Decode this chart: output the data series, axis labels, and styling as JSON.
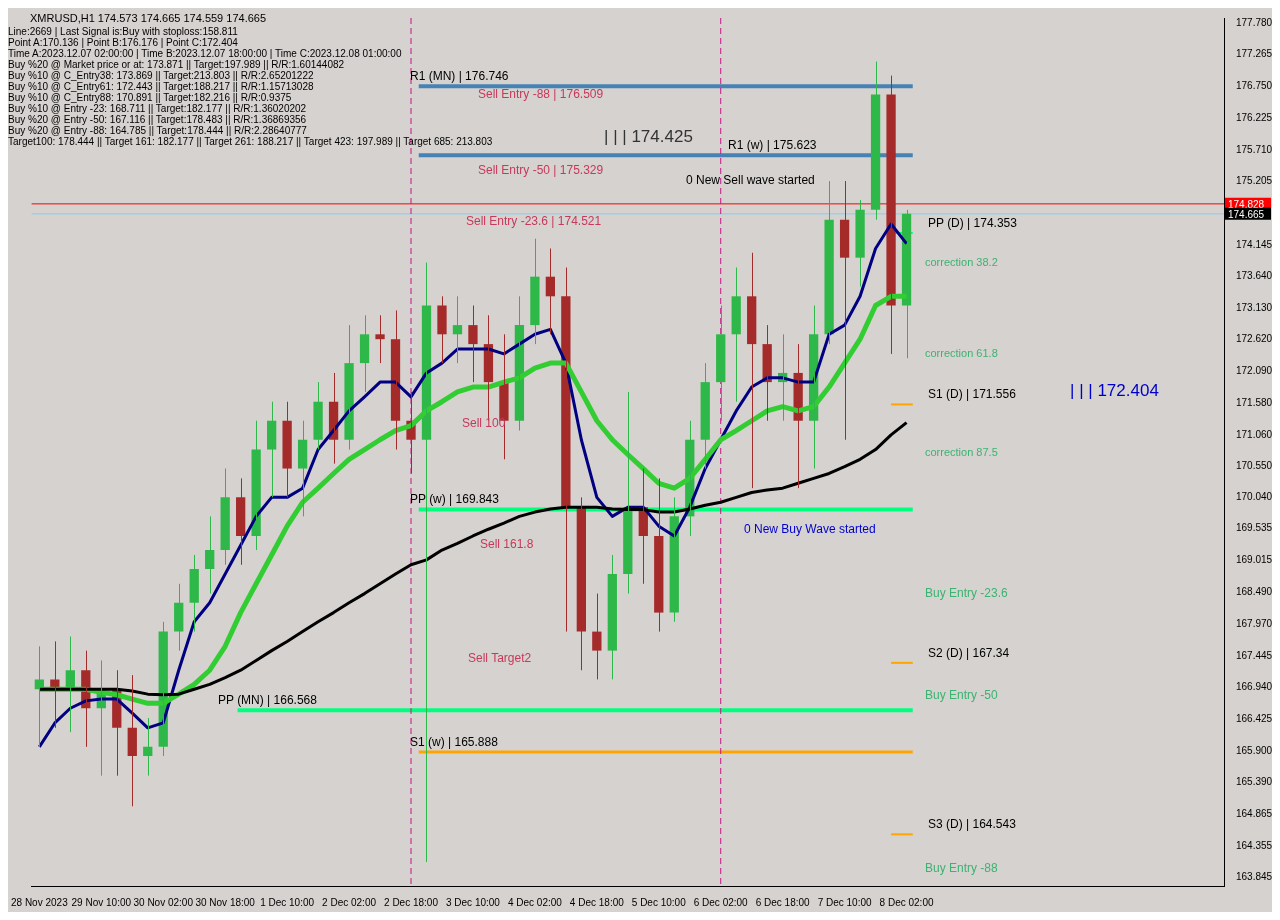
{
  "chart_data": {
    "type": "candlestick",
    "title": "XMRUSD,H1 174.573 174.665 174.559 174.665",
    "categories": [
      "28 Nov 2023",
      null,
      null,
      null,
      "29 Nov 10:00",
      null,
      null,
      null,
      "30 Nov 02:00",
      null,
      null,
      null,
      "30 Nov 18:00",
      null,
      null,
      null,
      "1 Dec 10:00",
      null,
      null,
      null,
      "2 Dec 02:00",
      null,
      null,
      null,
      "2 Dec 18:00",
      null,
      null,
      null,
      "3 Dec 10:00",
      null,
      null,
      null,
      "4 Dec 02:00",
      null,
      null,
      null,
      "4 Dec 18:00",
      null,
      null,
      null,
      "5 Dec 10:00",
      null,
      null,
      null,
      "6 Dec 02:00",
      null,
      null,
      null,
      "6 Dec 18:00",
      null,
      null,
      null,
      "7 Dec 10:00",
      null,
      null,
      null,
      "8 Dec 02:00"
    ],
    "ohlc": [
      [
        166.91,
        167.61,
        165.97,
        167.07
      ],
      [
        167.07,
        167.69,
        166.28,
        166.91
      ],
      [
        166.91,
        167.77,
        166.21,
        167.22
      ],
      [
        167.22,
        167.54,
        165.97,
        166.6
      ],
      [
        166.6,
        167.38,
        165.5,
        166.91
      ],
      [
        166.91,
        167.22,
        165.5,
        166.28
      ],
      [
        166.28,
        167.14,
        165.0,
        165.82
      ],
      [
        165.82,
        166.44,
        165.5,
        165.97
      ],
      [
        165.97,
        168.01,
        165.82,
        167.85
      ],
      [
        167.85,
        168.63,
        167.54,
        168.32
      ],
      [
        168.32,
        169.1,
        167.85,
        168.87
      ],
      [
        168.87,
        169.73,
        168.47,
        169.18
      ],
      [
        169.18,
        170.51,
        168.94,
        170.04
      ],
      [
        170.04,
        170.35,
        168.94,
        169.41
      ],
      [
        169.41,
        171.29,
        169.18,
        170.82
      ],
      [
        170.82,
        171.6,
        170.04,
        171.29
      ],
      [
        171.29,
        171.6,
        170.04,
        170.51
      ],
      [
        170.51,
        171.29,
        169.73,
        170.98
      ],
      [
        170.98,
        171.92,
        170.82,
        171.6
      ],
      [
        171.6,
        172.07,
        170.59,
        170.98
      ],
      [
        170.98,
        172.85,
        170.82,
        172.23
      ],
      [
        172.23,
        173.01,
        171.76,
        172.7
      ],
      [
        172.7,
        173.01,
        172.23,
        172.62
      ],
      [
        172.62,
        173.09,
        170.82,
        171.29
      ],
      [
        171.29,
        171.76,
        170.43,
        170.98
      ],
      [
        170.98,
        173.87,
        164.09,
        173.17
      ],
      [
        173.17,
        173.32,
        172.23,
        172.7
      ],
      [
        172.7,
        173.32,
        172.23,
        172.85
      ],
      [
        172.85,
        173.17,
        171.92,
        172.54
      ],
      [
        172.54,
        173.01,
        171.29,
        171.92
      ],
      [
        171.92,
        172.7,
        170.66,
        171.29
      ],
      [
        171.29,
        173.32,
        171.13,
        172.85
      ],
      [
        172.85,
        174.26,
        172.54,
        173.64
      ],
      [
        173.64,
        174.1,
        172.7,
        173.32
      ],
      [
        173.32,
        173.79,
        167.85,
        169.88
      ],
      [
        169.88,
        170.04,
        167.22,
        167.85
      ],
      [
        167.85,
        168.47,
        167.07,
        167.54
      ],
      [
        167.54,
        169.1,
        167.07,
        168.79
      ],
      [
        168.79,
        171.76,
        168.47,
        169.88
      ],
      [
        169.88,
        170.51,
        168.63,
        169.41
      ],
      [
        169.41,
        170.35,
        167.85,
        168.16
      ],
      [
        168.16,
        170.04,
        168.01,
        169.73
      ],
      [
        169.73,
        171.29,
        169.41,
        170.98
      ],
      [
        170.98,
        172.23,
        170.51,
        171.92
      ],
      [
        171.92,
        173.17,
        171.29,
        172.7
      ],
      [
        172.7,
        173.79,
        171.6,
        173.32
      ],
      [
        173.32,
        174.03,
        170.19,
        172.54
      ],
      [
        172.54,
        172.85,
        171.29,
        171.92
      ],
      [
        171.92,
        172.7,
        171.29,
        172.07
      ],
      [
        172.07,
        172.54,
        170.19,
        171.29
      ],
      [
        171.29,
        173.17,
        170.51,
        172.7
      ],
      [
        172.7,
        175.2,
        172.54,
        174.57
      ],
      [
        174.57,
        175.2,
        170.98,
        173.95
      ],
      [
        173.95,
        174.89,
        173.48,
        174.73
      ],
      [
        174.73,
        177.15,
        174.57,
        176.61
      ],
      [
        176.61,
        176.92,
        172.38,
        173.17
      ],
      [
        173.17,
        174.73,
        172.31,
        174.665
      ]
    ],
    "colors": [
      "#2fb84a",
      "#a52a2a",
      "#2fb84a",
      "#a52a2a",
      "#2fb84a",
      "#a52a2a",
      "#a52a2a",
      "#2fb84a",
      "#2fb84a",
      "#2fb84a",
      "#2fb84a",
      "#2fb84a",
      "#2fb84a",
      "#a52a2a",
      "#2fb84a",
      "#2fb84a",
      "#a52a2a",
      "#2fb84a",
      "#2fb84a",
      "#a52a2a",
      "#2fb84a",
      "#2fb84a",
      "#a52a2a",
      "#a52a2a",
      "#a52a2a",
      "#2fb84a",
      "#a52a2a",
      "#2fb84a",
      "#a52a2a",
      "#a52a2a",
      "#a52a2a",
      "#2fb84a",
      "#2fb84a",
      "#a52a2a",
      "#a52a2a",
      "#a52a2a",
      "#a52a2a",
      "#2fb84a",
      "#2fb84a",
      "#a52a2a",
      "#a52a2a",
      "#2fb84a",
      "#2fb84a",
      "#2fb84a",
      "#2fb84a",
      "#2fb84a",
      "#a52a2a",
      "#a52a2a",
      "#2fb84a",
      "#a52a2a",
      "#2fb84a",
      "#2fb84a",
      "#a52a2a",
      "#2fb84a",
      "#2fb84a",
      "#a52a2a",
      "#2fb84a"
    ],
    "series": [
      {
        "type": "line",
        "color": "#000000",
        "values": [
          166.91,
          166.91,
          166.91,
          166.91,
          166.91,
          166.91,
          166.88,
          166.83,
          166.82,
          166.83,
          166.91,
          166.99,
          167.1,
          167.22,
          167.38,
          167.54,
          167.69,
          167.85,
          168.01,
          168.16,
          168.32,
          168.47,
          168.63,
          168.79,
          168.94,
          169.02,
          169.18,
          169.29,
          169.41,
          169.52,
          169.62,
          169.73,
          169.8,
          169.85,
          169.88,
          169.88,
          169.88,
          169.85,
          169.84,
          169.84,
          169.8,
          169.8,
          169.85,
          169.91,
          169.96,
          170.04,
          170.12,
          170.16,
          170.19,
          170.27,
          170.35,
          170.43,
          170.54,
          170.66,
          170.82,
          171.06,
          171.26
        ]
      },
      {
        "type": "line",
        "color": "#32cd32",
        "values": [
          166.91,
          166.91,
          166.91,
          166.91,
          166.86,
          166.82,
          166.75,
          166.68,
          166.68,
          166.83,
          166.99,
          167.22,
          167.61,
          168.16,
          168.63,
          169.1,
          169.57,
          169.96,
          170.19,
          170.43,
          170.66,
          170.82,
          170.98,
          171.13,
          171.21,
          171.45,
          171.6,
          171.76,
          171.84,
          171.84,
          171.92,
          171.99,
          172.15,
          172.23,
          172.23,
          171.76,
          171.29,
          170.98,
          170.74,
          170.51,
          170.27,
          170.19,
          170.35,
          170.66,
          170.98,
          171.13,
          171.29,
          171.45,
          171.52,
          171.45,
          171.52,
          171.84,
          172.23,
          172.62,
          173.17,
          173.32,
          173.32
        ]
      },
      {
        "type": "line",
        "color": "#000080",
        "values": [
          165.97,
          166.36,
          166.6,
          166.72,
          166.75,
          166.75,
          166.52,
          166.28,
          166.36,
          167.22,
          168.01,
          168.32,
          168.79,
          169.26,
          169.73,
          170.04,
          170.04,
          170.19,
          170.82,
          171.13,
          171.45,
          171.68,
          171.92,
          171.92,
          171.68,
          172.07,
          172.23,
          172.46,
          172.46,
          172.46,
          172.38,
          172.54,
          172.7,
          172.78,
          172.23,
          170.98,
          170.04,
          169.73,
          169.88,
          169.88,
          169.57,
          169.41,
          169.88,
          170.51,
          170.98,
          171.45,
          171.84,
          171.99,
          171.99,
          171.92,
          171.92,
          172.7,
          172.85,
          173.32,
          174.1,
          174.5,
          174.18
        ]
      }
    ],
    "ylim": [
      163.7,
      177.86
    ],
    "yticks": [
      {
        "value": 177.78,
        "label": "177.780"
      },
      177.265,
      {
        "value": 176.75,
        "label": "176.750"
      },
      176.225,
      {
        "value": 175.71,
        "label": "175.710"
      },
      175.205,
      174.145,
      {
        "value": 173.64,
        "label": "173.640"
      },
      {
        "value": 173.13,
        "label": "173.130"
      },
      {
        "value": 172.62,
        "label": "172.620"
      },
      {
        "value": 172.09,
        "label": "172.090"
      },
      {
        "value": 171.58,
        "label": "171.580"
      },
      {
        "value": 171.06,
        "label": "171.060"
      },
      {
        "value": 170.55,
        "label": "170.550"
      },
      {
        "value": 170.04,
        "label": "170.040"
      },
      169.535,
      169.015,
      {
        "value": 168.49,
        "label": "168.490"
      },
      {
        "value": 167.97,
        "label": "167.970"
      },
      167.445,
      {
        "value": 166.94,
        "label": "166.940"
      },
      166.425,
      {
        "value": 165.9,
        "label": "165.900"
      },
      {
        "value": 165.39,
        "label": "165.390"
      },
      164.865,
      164.355,
      163.845
    ],
    "ref_lines": [
      {
        "axis": "y",
        "value": 176.746,
        "label": "R1 (MN) | 176.746",
        "color": "#4682b4"
      },
      {
        "axis": "y",
        "value": 175.623,
        "label": "R1 (w) | 175.623",
        "color": "#4682b4"
      },
      {
        "axis": "y",
        "value": 169.843,
        "label": "PP (w) | 169.843",
        "color": "#00ff7f"
      },
      {
        "axis": "y",
        "value": 166.568,
        "label": "PP (MN) | 166.568",
        "color": "#00ff7f"
      },
      {
        "axis": "y",
        "value": 165.888,
        "label": "S1 (w) | 165.888",
        "color": "#ffa500"
      },
      {
        "axis": "y",
        "value": 174.353,
        "label": "PP (D) | 174.353",
        "color": "#00ff7f"
      },
      {
        "axis": "y",
        "value": 171.556,
        "label": "S1 (D) | 171.556",
        "color": "#ffa500"
      },
      {
        "axis": "y",
        "value": 167.34,
        "label": "S2 (D) | 167.34",
        "color": "#ffa500"
      },
      {
        "axis": "y",
        "value": 164.543,
        "label": "S3 (D) | 164.543",
        "color": "#ffa500"
      },
      {
        "axis": "y",
        "value": 174.828,
        "label": "174.828",
        "color": "#ff0000"
      },
      {
        "axis": "y",
        "value": 174.665,
        "label": "174.665",
        "color": "#87ceeb"
      },
      {
        "axis": "x",
        "value": "2 Dec 18:00",
        "color": "#c71585",
        "line_style": "dashed"
      },
      {
        "axis": "x",
        "value": "6 Dec 02:00",
        "color": "#c71585",
        "line_style": "dashed"
      }
    ],
    "annotations": [
      "Line:2669 | Last Signal is:Buy with stoploss:158.811",
      "Point A:170.136 | Point B:176.176 | Point C:172.404",
      "Time A:2023.12.07 02:00:00 | Time B:2023.12.07 18:00:00 | Time C:2023.12.08 01:00:00",
      "Buy %20 @ Market price or at: 173.871 || Target:197.989 || R/R:1.60144082",
      "Buy %10 @ C_Entry38: 173.869 || Target:213.803 || R/R:2.65201222",
      "Buy %10 @ C_Entry61: 172.443 || Target:188.217 || R/R:1.15713028",
      "Buy %10 @ C_Entry88: 170.891 || Target:182.216 || R/R:0.9375",
      "Buy %10 @ Entry -23: 168.711 || Target:182.177 || R/R:1.36020202",
      "Buy %20 @ Entry -50: 167.116 || Target:178.483 || R/R:1.36869356",
      "Buy %20 @ Entry -88: 164.785 || Target:178.444 || R/R:2.28640777",
      "Target100: 178.444 || Target 161: 182.177 || Target 261: 188.217 || Target 423: 197.989 || Target 685: 213.803",
      "Sell Entry -88 | 176.509",
      "| | | 174.425",
      "Sell Entry -50 | 175.329",
      "Sell Entry -23.6 | 174.521",
      "0 New Sell wave started",
      "Sell 100",
      "Sell 161.8",
      "Sell Target2",
      "0 New Buy Wave started",
      "correction 38.2",
      "correction 61.8",
      "| | | 172.404",
      "correction 87.5",
      "Buy Entry -23.6",
      "Buy Entry -50",
      "Buy Entry -88"
    ]
  }
}
